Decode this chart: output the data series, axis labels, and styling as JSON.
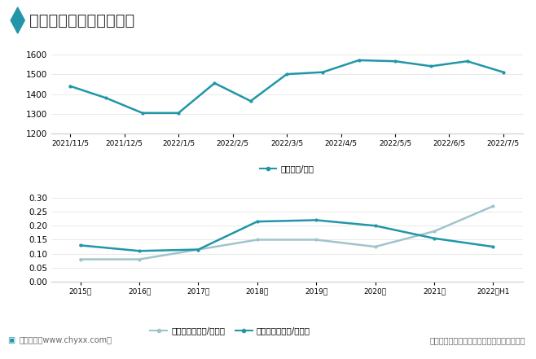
{
  "title": "中国市场炼焦煤价格走势",
  "title_color": "#333333",
  "title_fontsize": 14,
  "background_color": "#ffffff",
  "title_bg_color": "#e8f4f8",
  "footer_bg_color": "#e8f4f8",
  "chart1": {
    "x_labels": [
      "2021/11/5",
      "2021/12/5",
      "2022/1/5",
      "2022/2/5",
      "2022/3/5",
      "2022/4/5",
      "2022/5/5",
      "2022/6/5",
      "2022/7/5"
    ],
    "y_values": [
      1440,
      1380,
      1305,
      1305,
      1455,
      1365,
      1500,
      1510,
      1570,
      1565,
      1540,
      1565,
      1510
    ],
    "x_positions": [
      0,
      1.5,
      3,
      4.5,
      6,
      7.5,
      9,
      10.5,
      12,
      13.5,
      15,
      16.5,
      18
    ],
    "line_color": "#2196a8",
    "line_width": 1.8,
    "ylim": [
      1200,
      1650
    ],
    "yticks": [
      1200,
      1300,
      1400,
      1500,
      1600
    ],
    "legend_label": "价格（元/吨）",
    "marker": "o",
    "marker_size": 3
  },
  "chart2": {
    "x_labels": [
      "2015年",
      "2016年",
      "2017年",
      "2018年",
      "2019年",
      "2020年",
      "2021年",
      "2022年H1"
    ],
    "import_values": [
      0.08,
      0.08,
      0.115,
      0.15,
      0.15,
      0.125,
      0.18,
      0.27
    ],
    "export_values": [
      0.13,
      0.11,
      0.115,
      0.215,
      0.22,
      0.2,
      0.155,
      0.125
    ],
    "import_color": "#a0c4cc",
    "export_color": "#2196a8",
    "line_width": 1.8,
    "ylim": [
      0.0,
      0.32
    ],
    "yticks": [
      0.0,
      0.05,
      0.1,
      0.15,
      0.2,
      0.25,
      0.3
    ],
    "import_legend": "进口均价（美元/千克）",
    "export_legend": "出口均价（美元/千克）",
    "marker": "o",
    "marker_size": 3
  },
  "footer_left": "智研咨询（www.chyxx.com）",
  "footer_right": "资料来源：商务部、中国海关、智研咨询整理",
  "footer_color": "#666666",
  "footer_fontsize": 7,
  "diamond_color": "#2196a8",
  "grid_color": "#cccccc",
  "grid_alpha": 0.6
}
